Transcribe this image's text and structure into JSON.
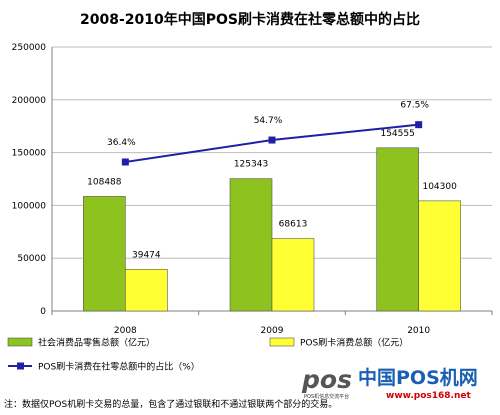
{
  "chart_data": {
    "type": "bar",
    "title": "2008-2010年中国POS刷卡消费在社零总额中的占比",
    "categories": [
      "2008",
      "2009",
      "2010"
    ],
    "y_axis": {
      "ylim": [
        0,
        250000
      ],
      "ticks": [
        "0",
        "50000",
        "100000",
        "150000",
        "200000",
        "250000"
      ]
    },
    "series": [
      {
        "name": "社会消费品零售总额（亿元）",
        "type": "bar",
        "color": "#8dc21f",
        "values": [
          108488,
          125343,
          154555
        ],
        "labels": [
          "108488",
          "125343",
          "154555"
        ]
      },
      {
        "name": "POS刷卡消费总额（亿元）",
        "type": "bar",
        "color": "#ffff33",
        "values": [
          39474,
          68613,
          104300
        ],
        "labels": [
          "39474",
          "68613",
          "104300"
        ]
      },
      {
        "name": "POS刷卡消费在社零总额中的占比（%）",
        "type": "line",
        "color": "#1f1fa8",
        "values": [
          36.4,
          54.7,
          67.5
        ],
        "labels": [
          "36.4%",
          "54.7%",
          "67.5%"
        ]
      }
    ],
    "grid": true,
    "legend_placement": "bottom"
  },
  "footnote": "注：数据仅POS机刷卡交易的总量，包含了通过银联和不通过银联两个部分的交易。",
  "watermark": {
    "logo": "pos",
    "name": "中国POS机网",
    "tagline": "POS机信息交流平台",
    "url": "www.pos168.net"
  }
}
